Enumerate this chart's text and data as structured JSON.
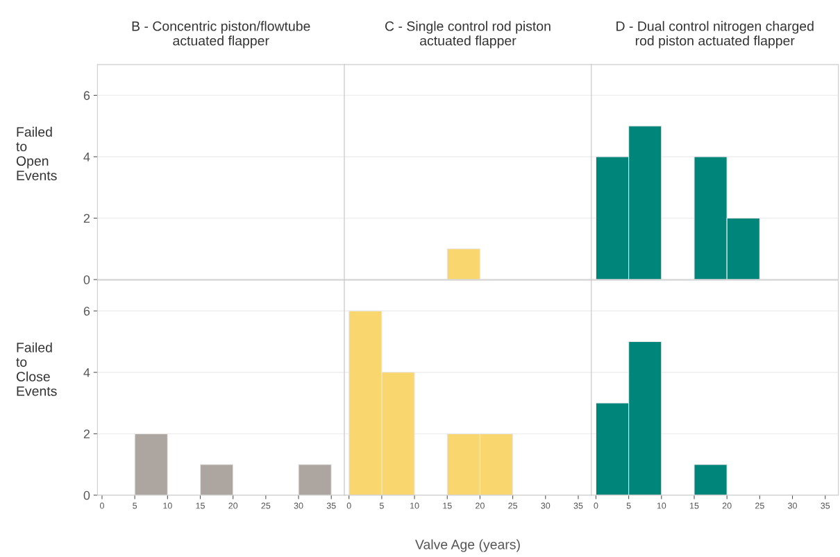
{
  "chart_data": [
    {
      "type": "histogram",
      "title": "B - Concentric piston/flowtube\nactuated flapper",
      "ylabel": "Failed\nto\nOpen\nEvents",
      "xlim": [
        -0.7,
        37
      ],
      "xticks": [
        0,
        5,
        10,
        15,
        20,
        25,
        30,
        35
      ],
      "ylim": [
        0,
        7
      ],
      "yticks": [
        0,
        2,
        4,
        6
      ],
      "grid": "y",
      "tick_labels": "y"
    },
    {
      "type": "histogram",
      "title": "C - Single control rod piston\nactuated flapper",
      "bins": [
        0,
        5,
        10,
        15,
        20,
        25,
        30,
        35
      ],
      "values": [
        0,
        0,
        0,
        1,
        0,
        0,
        0
      ],
      "color": "#fad66e",
      "xlim": [
        -0.7,
        37
      ],
      "xticks": [
        0,
        5,
        10,
        15,
        20,
        25,
        30,
        35
      ],
      "ylim": [
        0,
        7
      ],
      "yticks": [
        0,
        2,
        4,
        6
      ],
      "grid": "y",
      "tick_labels": false
    },
    {
      "type": "histogram",
      "title": "D - Dual control nitrogen charged\nrod piston actuated flapper",
      "bins": [
        0,
        5,
        10,
        15,
        20,
        25,
        30,
        35
      ],
      "values": [
        4,
        5,
        0,
        4,
        2,
        0,
        0
      ],
      "color": "#00857a",
      "xlim": [
        -0.7,
        37
      ],
      "xticks": [
        0,
        5,
        10,
        15,
        20,
        25,
        30,
        35
      ],
      "ylim": [
        0,
        7
      ],
      "yticks": [
        0,
        2,
        4,
        6
      ],
      "grid": "y",
      "tick_labels": false
    },
    {
      "type": "histogram",
      "ylabel": "Failed\nto\nClose\nEvents",
      "bins": [
        0,
        5,
        10,
        15,
        20,
        25,
        30,
        35
      ],
      "values": [
        0,
        2,
        0,
        1,
        0,
        0,
        1
      ],
      "color": "#ada59f",
      "xlim": [
        -0.7,
        37
      ],
      "xticks": [
        0,
        5,
        10,
        15,
        20,
        25,
        30,
        35
      ],
      "ylim": [
        0,
        7
      ],
      "yticks": [
        0,
        2,
        4,
        6
      ],
      "grid": "y"
    },
    {
      "type": "histogram",
      "xlabel": "Valve Age (years)",
      "bins": [
        0,
        5,
        10,
        15,
        20,
        25,
        30,
        35
      ],
      "values": [
        6,
        4,
        0,
        2,
        2,
        0,
        0
      ],
      "color": "#fad66e",
      "xlim": [
        -0.7,
        37
      ],
      "xticks": [
        0,
        5,
        10,
        15,
        20,
        25,
        30,
        35
      ],
      "ylim": [
        0,
        7
      ],
      "yticks": [
        0,
        2,
        4,
        6
      ],
      "grid": "y",
      "tick_labels": "x"
    },
    {
      "type": "histogram",
      "bins": [
        0,
        5,
        10,
        15,
        20,
        25,
        30,
        35
      ],
      "values": [
        3,
        5,
        0,
        1,
        0,
        0,
        0
      ],
      "color": "#00857a",
      "xlim": [
        -0.7,
        37
      ],
      "xticks": [
        0,
        5,
        10,
        15,
        20,
        25,
        30,
        35
      ],
      "ylim": [
        0,
        7
      ],
      "yticks": [
        0,
        2,
        4,
        6
      ],
      "grid": "y",
      "tick_labels": "x"
    }
  ]
}
